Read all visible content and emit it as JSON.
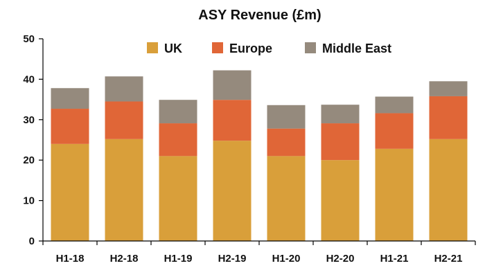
{
  "chart_data": {
    "type": "bar",
    "stacked": true,
    "title": "ASY Revenue (£m)",
    "xlabel": "",
    "ylabel": "",
    "categories": [
      "H1-18",
      "H2-18",
      "H1-19",
      "H2-19",
      "H1-20",
      "H2-20",
      "H1-21",
      "H2-21"
    ],
    "series": [
      {
        "name": "UK",
        "color": "#D99F3A",
        "values": [
          24.0,
          25.2,
          21.0,
          24.8,
          21.0,
          20.0,
          22.8,
          25.2
        ]
      },
      {
        "name": "Europe",
        "color": "#E06637",
        "values": [
          8.7,
          9.3,
          8.1,
          10.1,
          6.8,
          9.1,
          8.8,
          10.6
        ]
      },
      {
        "name": "Middle East",
        "color": "#958A7D",
        "values": [
          5.1,
          6.2,
          5.8,
          7.3,
          5.8,
          4.6,
          4.1,
          3.7
        ]
      }
    ],
    "ylim": [
      0,
      50
    ],
    "yticks": [
      0,
      10,
      20,
      30,
      40,
      50
    ],
    "grid": false,
    "legend": "top"
  }
}
